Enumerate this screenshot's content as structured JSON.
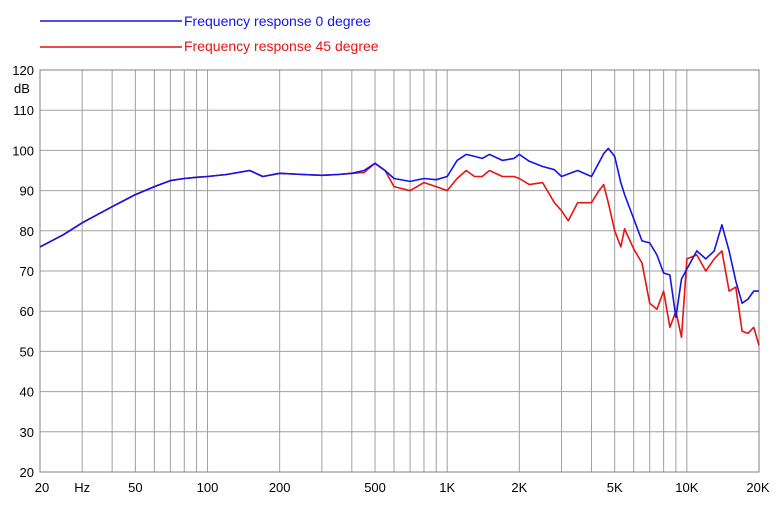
{
  "colors": {
    "series_0": "#1414e6",
    "series_45": "#e61414",
    "grid": "#a0a0a0",
    "frame": "#808080"
  },
  "chart_data": {
    "type": "line",
    "xscale": "log",
    "xlim": [
      20,
      20000
    ],
    "ylim": [
      20,
      120
    ],
    "grid": true,
    "legend_position": "top-left",
    "ylabel": "dB",
    "xlabel": "",
    "x_ticks": [
      {
        "value": 20,
        "label": "20"
      },
      {
        "value": 30,
        "label": "Hz"
      },
      {
        "value": 50,
        "label": "50"
      },
      {
        "value": 100,
        "label": "100"
      },
      {
        "value": 200,
        "label": "200"
      },
      {
        "value": 500,
        "label": "500"
      },
      {
        "value": 1000,
        "label": "1K"
      },
      {
        "value": 2000,
        "label": "2K"
      },
      {
        "value": 5000,
        "label": "5K"
      },
      {
        "value": 10000,
        "label": "10K"
      },
      {
        "value": 20000,
        "label": "20K"
      }
    ],
    "y_ticks": [
      {
        "value": 120,
        "label": "120"
      },
      {
        "value": 110,
        "label": "110"
      },
      {
        "value": 100,
        "label": "100"
      },
      {
        "value": 90,
        "label": "90"
      },
      {
        "value": 80,
        "label": "80"
      },
      {
        "value": 70,
        "label": "70"
      },
      {
        "value": 60,
        "label": "60"
      },
      {
        "value": 50,
        "label": "50"
      },
      {
        "value": 40,
        "label": "40"
      },
      {
        "value": 30,
        "label": "30"
      },
      {
        "value": 20,
        "label": "20"
      }
    ],
    "y_unit_label": "dB",
    "series": [
      {
        "name": "Frequency response 0 degree",
        "color": "#1414e6",
        "x": [
          20,
          25,
          30,
          40,
          50,
          60,
          70,
          80,
          90,
          100,
          120,
          150,
          170,
          200,
          250,
          300,
          350,
          400,
          450,
          500,
          550,
          600,
          700,
          800,
          900,
          1000,
          1100,
          1200,
          1300,
          1400,
          1500,
          1700,
          1900,
          2000,
          2200,
          2500,
          2800,
          3000,
          3500,
          4000,
          4300,
          4500,
          4700,
          5000,
          5300,
          5500,
          6000,
          6500,
          7000,
          7500,
          8000,
          8500,
          9000,
          9500,
          10000,
          11000,
          12000,
          13000,
          14000,
          15000,
          16000,
          17000,
          18000,
          19000,
          20000
        ],
        "y": [
          76,
          79,
          82,
          86,
          89,
          91,
          92.5,
          93,
          93.3,
          93.5,
          94,
          95,
          93.5,
          94.3,
          94,
          93.8,
          94,
          94.3,
          95,
          96.8,
          95,
          93,
          92.3,
          93,
          92.7,
          93.5,
          97.5,
          99,
          98.5,
          98,
          99,
          97.5,
          98,
          99,
          97.3,
          96,
          95.2,
          93.5,
          95,
          93.5,
          97,
          99.2,
          100.5,
          98.5,
          92,
          89,
          83,
          77.5,
          77,
          74,
          69.5,
          69,
          58.5,
          68,
          70.5,
          75,
          73,
          75,
          81.5,
          75,
          67.5,
          62,
          63,
          65,
          65
        ]
      },
      {
        "name": "Frequency response 45 degree",
        "color": "#e61414",
        "x": [
          20,
          25,
          30,
          40,
          50,
          60,
          70,
          80,
          90,
          100,
          120,
          150,
          170,
          200,
          250,
          300,
          350,
          400,
          450,
          500,
          550,
          600,
          700,
          800,
          900,
          1000,
          1100,
          1200,
          1300,
          1400,
          1500,
          1700,
          1900,
          2000,
          2200,
          2500,
          2800,
          3000,
          3200,
          3500,
          4000,
          4300,
          4500,
          4700,
          5000,
          5300,
          5500,
          6000,
          6500,
          7000,
          7500,
          8000,
          8500,
          9000,
          9500,
          10000,
          11000,
          12000,
          13000,
          14000,
          15000,
          16000,
          17000,
          18000,
          19000,
          20000
        ],
        "y": [
          76,
          79,
          82,
          86,
          89,
          91,
          92.5,
          93,
          93.3,
          93.5,
          94,
          95,
          93.5,
          94.3,
          94,
          93.8,
          94,
          94.3,
          94.5,
          96.8,
          95,
          91,
          90,
          92,
          91,
          90,
          93,
          95,
          93.5,
          93.5,
          95,
          93.5,
          93.5,
          93,
          91.5,
          92,
          87,
          85,
          82.5,
          87,
          87,
          90,
          91.5,
          87,
          80,
          76,
          80.5,
          75.5,
          72,
          62,
          60.5,
          65,
          56,
          60,
          53.5,
          73,
          74,
          70,
          73,
          75,
          65,
          66,
          55,
          54.5,
          56,
          51.5
        ]
      }
    ]
  }
}
